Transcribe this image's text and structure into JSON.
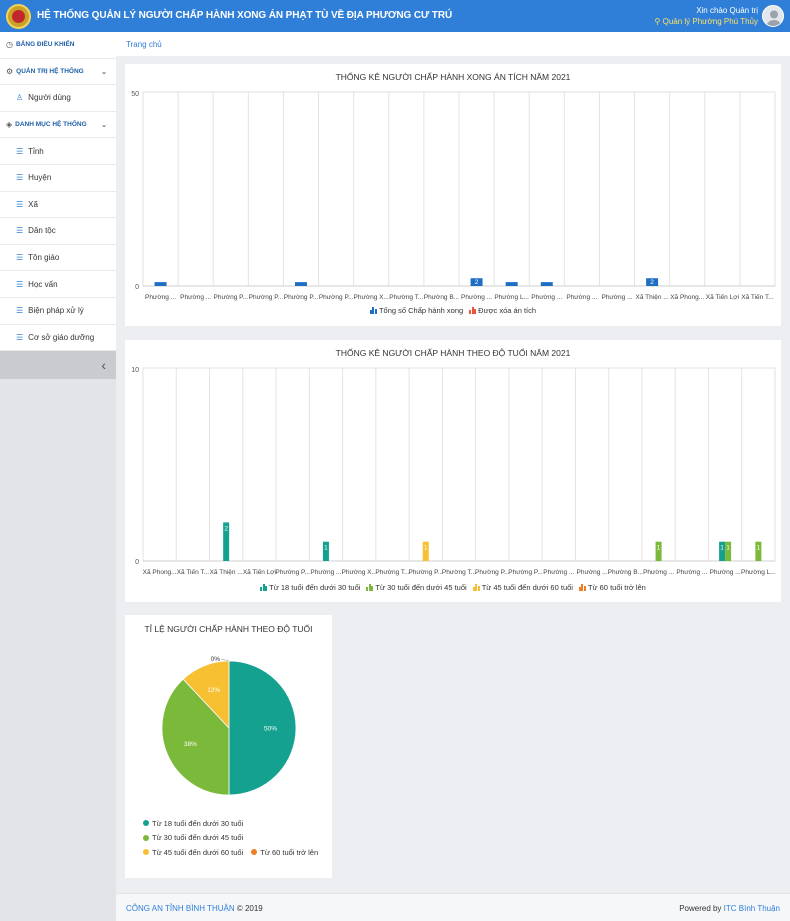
{
  "header": {
    "title": "HỆ THỐNG QUẢN LÝ NGƯỜI CHẤP HÀNH XONG ÁN PHẠT TÙ VỀ ĐỊA PHƯƠNG CƯ TRÚ",
    "greeting": "Xin chào Quản trị",
    "unit": "Quản lý Phường Phú Thủy"
  },
  "sidebar": {
    "items": [
      {
        "type": "group",
        "label": "BẢNG ĐIỀU KHIỂN",
        "icon": "dashboard-icon",
        "glyph": "◷"
      },
      {
        "type": "group",
        "label": "QUẢN TRỊ HỆ THỐNG",
        "icon": "gear-icon",
        "glyph": "⚙",
        "chevron": true
      },
      {
        "type": "sub",
        "label": "Người dùng",
        "icon": "user-icon",
        "glyph": "♙"
      },
      {
        "type": "group",
        "label": "DANH MỤC HỆ THỐNG",
        "icon": "layers-icon",
        "glyph": "◈",
        "chevron": true
      },
      {
        "type": "sub",
        "label": "Tỉnh",
        "icon": "list-icon",
        "glyph": "☰"
      },
      {
        "type": "sub",
        "label": "Huyện",
        "icon": "list-icon",
        "glyph": "☰"
      },
      {
        "type": "sub",
        "label": "Xã",
        "icon": "list-icon",
        "glyph": "☰"
      },
      {
        "type": "sub",
        "label": "Dân tộc",
        "icon": "list-icon",
        "glyph": "☰"
      },
      {
        "type": "sub",
        "label": "Tôn giáo",
        "icon": "list-icon",
        "glyph": "☰"
      },
      {
        "type": "sub",
        "label": "Học vấn",
        "icon": "list-icon",
        "glyph": "☰"
      },
      {
        "type": "sub",
        "label": "Biện pháp xử lý",
        "icon": "list-icon",
        "glyph": "☰"
      },
      {
        "type": "sub",
        "label": "Cơ sở giáo dưỡng",
        "icon": "list-icon",
        "glyph": "☰"
      }
    ],
    "collapse_glyph": "‹"
  },
  "breadcrumb": {
    "home": "Trang chủ"
  },
  "chart_data": [
    {
      "type": "bar",
      "title": "THỐNG KÊ NGƯỜI CHẤP HÀNH XONG ÁN TÍCH NĂM 2021",
      "ylim": [
        0,
        50
      ],
      "yticks": [
        "0",
        "50"
      ],
      "categories": [
        "Phường ...",
        "Phường ...",
        "Phường P...",
        "Phường P...",
        "Phường P...",
        "Phường P...",
        "Phường X...",
        "Phường T...",
        "Phường B...",
        "Phường ...",
        "Phường L...",
        "Phường ...",
        "Phường ...",
        "Phường ...",
        "Xã Thiện ...",
        "Xã Phong...",
        "Xã Tiến Lợi",
        "Xã Tiến T..."
      ],
      "series": [
        {
          "name": "Tổng số Chấp hành xong",
          "color": "#1e6fc4",
          "values": [
            1,
            0,
            0,
            0,
            1,
            0,
            0,
            0,
            0,
            2,
            1,
            1,
            0,
            0,
            2,
            0,
            0,
            0
          ]
        },
        {
          "name": "Được xóa án tích",
          "color": "#e8553a",
          "values": [
            0,
            0,
            0,
            0,
            0,
            0,
            0,
            0,
            0,
            0,
            0,
            0,
            0,
            0,
            0,
            0,
            0,
            0
          ]
        }
      ],
      "bar_labels": [
        "",
        "",
        "",
        "",
        "",
        "",
        "",
        "",
        "",
        "2",
        "",
        "",
        "",
        "",
        "2",
        "",
        "",
        ""
      ]
    },
    {
      "type": "bar",
      "title": "THỐNG KÊ NGƯỜI CHẤP HÀNH THEO ĐỘ TUỔI NĂM 2021",
      "ylim": [
        0,
        10
      ],
      "yticks": [
        "0",
        "10"
      ],
      "categories": [
        "Xã Phong...",
        "Xã Tiến T...",
        "Xã Thiện ...",
        "Xã Tiến Lợi",
        "Phường P...",
        "Phường ...",
        "Phường X...",
        "Phường T...",
        "Phường P...",
        "Phường T...",
        "Phường P...",
        "Phường P...",
        "Phường ...",
        "Phường ...",
        "Phường B...",
        "Phường ...",
        "Phường ...",
        "Phường ...",
        "Phường L..."
      ],
      "series": [
        {
          "name": "Từ 18 tuổi đến dưới 30 tuổi",
          "color": "#14a18f",
          "values": [
            0,
            0,
            2,
            0,
            0,
            1,
            0,
            0,
            0,
            0,
            0,
            0,
            0,
            0,
            0,
            0,
            0,
            1,
            0
          ]
        },
        {
          "name": "Từ 30 tuổi đến dưới 45 tuổi",
          "color": "#7ab93a",
          "values": [
            0,
            0,
            0,
            0,
            0,
            0,
            0,
            0,
            0,
            0,
            0,
            0,
            0,
            0,
            0,
            1,
            0,
            1,
            1
          ]
        },
        {
          "name": "Từ 45 tuổi đến dưới 60 tuổi",
          "color": "#f6c032",
          "values": [
            0,
            0,
            0,
            0,
            0,
            0,
            0,
            0,
            1,
            0,
            0,
            0,
            0,
            0,
            0,
            0,
            0,
            0,
            0
          ]
        },
        {
          "name": "Từ 60 tuổi trở lên",
          "color": "#f07d22",
          "values": [
            0,
            0,
            0,
            0,
            0,
            0,
            0,
            0,
            0,
            0,
            0,
            0,
            0,
            0,
            0,
            0,
            0,
            0,
            0
          ]
        }
      ]
    },
    {
      "type": "pie",
      "title": "TỈ LỆ NGƯỜI CHẤP HÀNH THEO ĐỘ TUỔI",
      "labels": [
        "Từ 18 tuổi đến dưới 30 tuổi",
        "Từ 30 tuổi đến dưới 45 tuổi",
        "Từ 45 tuổi đến dưới 60 tuổi",
        "Từ 60 tuổi trở lên"
      ],
      "values": [
        50,
        38,
        12,
        0
      ],
      "value_labels": [
        "50%",
        "38%",
        "12%",
        "0%"
      ],
      "colors": [
        "#14a18f",
        "#7ab93a",
        "#f6c032",
        "#f07d22"
      ]
    }
  ],
  "footer": {
    "org": "CÔNG AN TỈNH BÌNH THUẬN",
    "copyright": "© 2019",
    "powered": "Powered by",
    "vendor": "ITC Bình Thuận"
  }
}
